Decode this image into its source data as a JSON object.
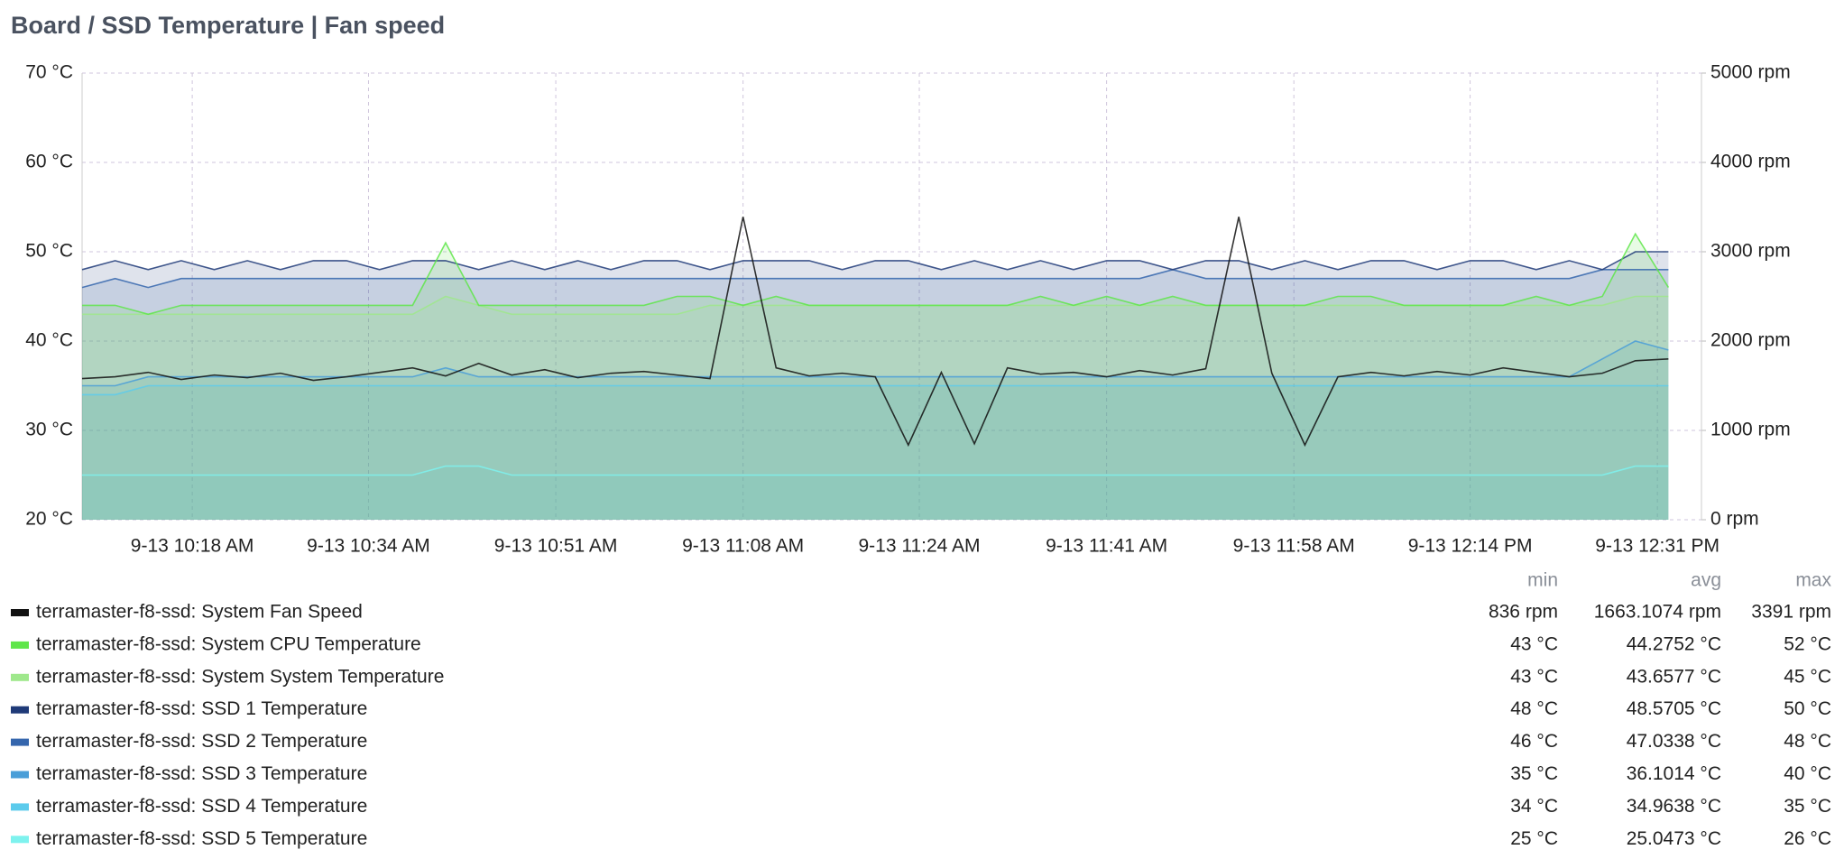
{
  "chart_data": {
    "type": "line",
    "title": "Board / SSD Temperature | Fan speed",
    "x": [
      "9-13 10:08 AM",
      "9-13 10:11 AM",
      "9-13 10:14 AM",
      "9-13 10:17 AM",
      "9-13 10:20 AM",
      "9-13 10:23 AM",
      "9-13 10:26 AM",
      "9-13 10:29 AM",
      "9-13 10:32 AM",
      "9-13 10:35 AM",
      "9-13 10:38 AM",
      "9-13 10:41 AM",
      "9-13 10:44 AM",
      "9-13 10:47 AM",
      "9-13 10:50 AM",
      "9-13 10:53 AM",
      "9-13 10:56 AM",
      "9-13 10:59 AM",
      "9-13 11:02 AM",
      "9-13 11:05 AM",
      "9-13 11:08 AM",
      "9-13 11:11 AM",
      "9-13 11:14 AM",
      "9-13 11:17 AM",
      "9-13 11:20 AM",
      "9-13 11:23 AM",
      "9-13 11:26 AM",
      "9-13 11:29 AM",
      "9-13 11:32 AM",
      "9-13 11:35 AM",
      "9-13 11:38 AM",
      "9-13 11:41 AM",
      "9-13 11:44 AM",
      "9-13 11:47 AM",
      "9-13 11:50 AM",
      "9-13 11:53 AM",
      "9-13 11:56 AM",
      "9-13 11:59 AM",
      "9-13 12:02 PM",
      "9-13 12:05 PM",
      "9-13 12:08 PM",
      "9-13 12:11 PM",
      "9-13 12:14 PM",
      "9-13 12:17 PM",
      "9-13 12:20 PM",
      "9-13 12:23 PM",
      "9-13 12:26 PM",
      "9-13 12:29 PM",
      "9-13 12:32 PM"
    ],
    "xlim": [
      "9-13 10:08 AM",
      "9-13 12:35 PM"
    ],
    "xticks": [
      "9-13 10:18 AM",
      "9-13 10:34 AM",
      "9-13 10:51 AM",
      "9-13 11:08 AM",
      "9-13 11:24 AM",
      "9-13 11:41 AM",
      "9-13 11:58 AM",
      "9-13 12:14 PM",
      "9-13 12:31 PM"
    ],
    "ylim": [
      20,
      70
    ],
    "yticks": [
      {
        "value": 20,
        "label": "20 °C"
      },
      {
        "value": 30,
        "label": "30 °C"
      },
      {
        "value": 40,
        "label": "40 °C"
      },
      {
        "value": 50,
        "label": "50 °C"
      },
      {
        "value": 60,
        "label": "60 °C"
      },
      {
        "value": 70,
        "label": "70 °C"
      }
    ],
    "y2lim": [
      0,
      5000
    ],
    "y2ticks": [
      {
        "value": 0,
        "label": "0 rpm"
      },
      {
        "value": 1000,
        "label": "1000 rpm"
      },
      {
        "value": 2000,
        "label": "2000 rpm"
      },
      {
        "value": 3000,
        "label": "3000 rpm"
      },
      {
        "value": 4000,
        "label": "4000 rpm"
      },
      {
        "value": 5000,
        "label": "5000 rpm"
      }
    ],
    "grid": true,
    "stats_header": [
      "min",
      "avg",
      "max"
    ],
    "series": [
      {
        "name": "terramaster-f8-ssd: System Fan Speed",
        "color": "#111111",
        "axis": "y2",
        "fill": false,
        "stats": [
          "836 rpm",
          "1663.1074 rpm",
          "3391 rpm"
        ],
        "values": [
          1580,
          1600,
          1650,
          1570,
          1620,
          1590,
          1640,
          1560,
          1600,
          1650,
          1700,
          1610,
          1750,
          1620,
          1680,
          1590,
          1640,
          1660,
          1620,
          1580,
          3391,
          1700,
          1610,
          1640,
          1600,
          836,
          1650,
          850,
          1700,
          1630,
          1650,
          1600,
          1670,
          1620,
          1690,
          3391,
          1640,
          836,
          1600,
          1650,
          1610,
          1660,
          1620,
          1700,
          1650,
          1600,
          1640,
          1780,
          1800
        ]
      },
      {
        "name": "terramaster-f8-ssd: System CPU Temperature",
        "color": "#5fe64a",
        "fill": true,
        "stats": [
          "43 °C",
          "44.2752 °C",
          "52 °C"
        ],
        "values": [
          44,
          44,
          43,
          44,
          44,
          44,
          44,
          44,
          44,
          44,
          44,
          51,
          44,
          44,
          44,
          44,
          44,
          44,
          45,
          45,
          44,
          45,
          44,
          44,
          44,
          44,
          44,
          44,
          44,
          45,
          44,
          45,
          44,
          45,
          44,
          44,
          44,
          44,
          45,
          45,
          44,
          44,
          44,
          44,
          45,
          44,
          45,
          52,
          46
        ]
      },
      {
        "name": "terramaster-f8-ssd: System System Temperature",
        "color": "#9fe88c",
        "fill": true,
        "stats": [
          "43 °C",
          "43.6577 °C",
          "45 °C"
        ],
        "values": [
          43,
          43,
          43,
          43,
          43,
          43,
          43,
          43,
          43,
          43,
          43,
          45,
          44,
          43,
          43,
          43,
          43,
          43,
          43,
          44,
          44,
          44,
          44,
          44,
          44,
          44,
          44,
          44,
          44,
          44,
          44,
          44,
          44,
          44,
          44,
          44,
          44,
          44,
          44,
          44,
          44,
          44,
          44,
          44,
          44,
          44,
          44,
          45,
          45
        ]
      },
      {
        "name": "terramaster-f8-ssd: SSD 1 Temperature",
        "color": "#1f3a78",
        "fill": true,
        "stats": [
          "48 °C",
          "48.5705 °C",
          "50 °C"
        ],
        "values": [
          48,
          49,
          48,
          49,
          48,
          49,
          48,
          49,
          49,
          48,
          49,
          49,
          48,
          49,
          48,
          49,
          48,
          49,
          49,
          48,
          49,
          49,
          49,
          48,
          49,
          49,
          48,
          49,
          48,
          49,
          48,
          49,
          49,
          48,
          49,
          49,
          48,
          49,
          48,
          49,
          49,
          48,
          49,
          49,
          48,
          49,
          48,
          50,
          50
        ]
      },
      {
        "name": "terramaster-f8-ssd: SSD 2 Temperature",
        "color": "#3566ad",
        "fill": true,
        "stats": [
          "46 °C",
          "47.0338 °C",
          "48 °C"
        ],
        "values": [
          46,
          47,
          46,
          47,
          47,
          47,
          47,
          47,
          47,
          47,
          47,
          47,
          47,
          47,
          47,
          47,
          47,
          47,
          47,
          47,
          47,
          47,
          47,
          47,
          47,
          47,
          47,
          47,
          47,
          47,
          47,
          47,
          47,
          48,
          47,
          47,
          47,
          47,
          47,
          47,
          47,
          47,
          47,
          47,
          47,
          47,
          48,
          48,
          48
        ]
      },
      {
        "name": "terramaster-f8-ssd: SSD 3 Temperature",
        "color": "#4a9ed8",
        "fill": true,
        "stats": [
          "35 °C",
          "36.1014 °C",
          "40 °C"
        ],
        "values": [
          35,
          35,
          36,
          36,
          36,
          36,
          36,
          36,
          36,
          36,
          36,
          37,
          36,
          36,
          36,
          36,
          36,
          36,
          36,
          36,
          36,
          36,
          36,
          36,
          36,
          36,
          36,
          36,
          36,
          36,
          36,
          36,
          36,
          36,
          36,
          36,
          36,
          36,
          36,
          36,
          36,
          36,
          36,
          36,
          36,
          36,
          38,
          40,
          39
        ]
      },
      {
        "name": "terramaster-f8-ssd: SSD 4 Temperature",
        "color": "#5ccbec",
        "fill": true,
        "stats": [
          "34 °C",
          "34.9638 °C",
          "35 °C"
        ],
        "values": [
          34,
          34,
          35,
          35,
          35,
          35,
          35,
          35,
          35,
          35,
          35,
          35,
          35,
          35,
          35,
          35,
          35,
          35,
          35,
          35,
          35,
          35,
          35,
          35,
          35,
          35,
          35,
          35,
          35,
          35,
          35,
          35,
          35,
          35,
          35,
          35,
          35,
          35,
          35,
          35,
          35,
          35,
          35,
          35,
          35,
          35,
          35,
          35,
          35
        ]
      },
      {
        "name": "terramaster-f8-ssd: SSD 5 Temperature",
        "color": "#7ef2ee",
        "fill": true,
        "stats": [
          "25 °C",
          "25.0473 °C",
          "26 °C"
        ],
        "values": [
          25,
          25,
          25,
          25,
          25,
          25,
          25,
          25,
          25,
          25,
          25,
          26,
          26,
          25,
          25,
          25,
          25,
          25,
          25,
          25,
          25,
          25,
          25,
          25,
          25,
          25,
          25,
          25,
          25,
          25,
          25,
          25,
          25,
          25,
          25,
          25,
          25,
          25,
          25,
          25,
          25,
          25,
          25,
          25,
          25,
          25,
          25,
          26,
          26
        ]
      }
    ]
  }
}
